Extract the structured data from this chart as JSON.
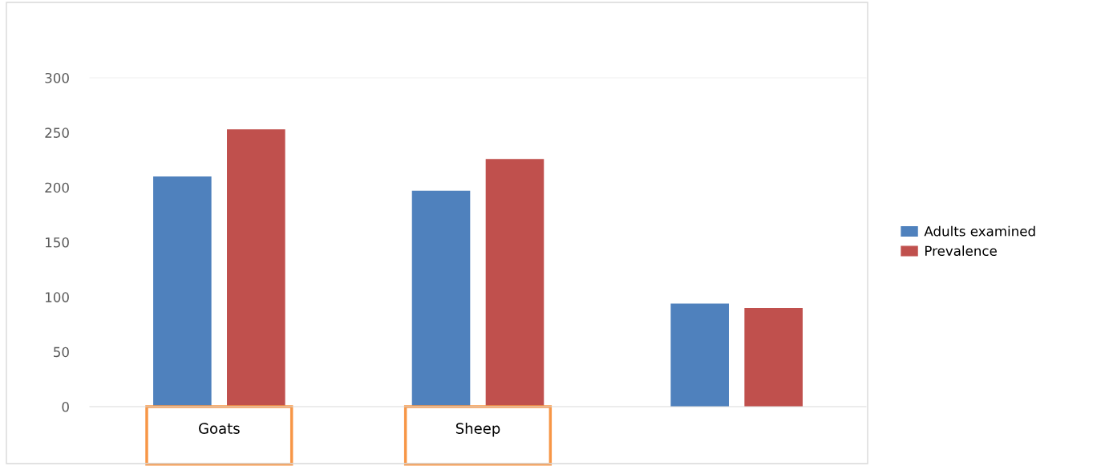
{
  "chart_data": {
    "type": "bar",
    "categories": [
      "Goats",
      "Sheep",
      null
    ],
    "series": [
      {
        "name": "Adults examined",
        "color": "#4f81bd",
        "values": [
          210,
          197,
          94
        ]
      },
      {
        "name": "Prevalence",
        "color": "#c0504d",
        "values": [
          253,
          226,
          90
        ]
      }
    ],
    "ylim": [
      0,
      300
    ],
    "yticks": [
      0,
      50,
      100,
      150,
      200,
      250,
      300
    ],
    "grid": false,
    "legend": "right"
  }
}
